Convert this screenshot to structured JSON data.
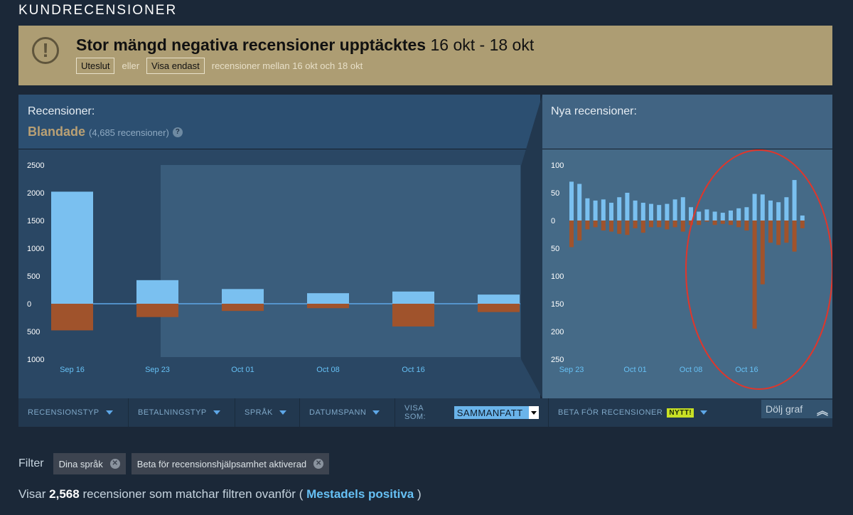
{
  "section_title": "KUNDRECENSIONER",
  "banner": {
    "title": "Stor mängd negativa recensioner upptäcktes",
    "range": "16 okt - 18 okt",
    "exclude_label": "Uteslut",
    "or_text": "eller",
    "show_only_label": "Visa endast",
    "suffix": "recensioner mellan 16 okt och 18 okt"
  },
  "overall": {
    "label": "Recensioner:",
    "summary": "Blandade",
    "count": "(4,685 recensioner)",
    "help": "?"
  },
  "recent": {
    "label": "Nya recensioner:"
  },
  "chart_data": [
    {
      "type": "bar",
      "categories": [
        "Sep 16",
        "Sep 23",
        "Oct 01",
        "Oct 08",
        "Oct 16",
        ""
      ],
      "x_tick_labels": [
        "Sep 16",
        "Sep 23",
        "Oct 01",
        "Oct 08",
        "Oct 16"
      ],
      "series": [
        {
          "name": "",
          "color": "#7ac0f0",
          "values": [
            2020,
            425,
            265,
            190,
            220,
            165
          ]
        },
        {
          "name": "",
          "color": "#a0532c",
          "values": [
            -480,
            -240,
            -130,
            -80,
            -410,
            -150
          ]
        }
      ],
      "ylim": [
        -1000,
        2500
      ],
      "y_ticks": [
        2500,
        2000,
        1500,
        1000,
        500,
        0,
        -500,
        -1000
      ],
      "y_tick_labels": [
        "2500",
        "2000",
        "1500",
        "1000",
        "500",
        "0",
        "500",
        "1000"
      ],
      "title": "",
      "xlabel": "",
      "ylabel": ""
    },
    {
      "type": "bar",
      "x_tick_labels": [
        "Sep 23",
        "Oct 01",
        "Oct 08",
        "Oct 16"
      ],
      "x_tick_index": [
        0,
        8,
        15,
        22
      ],
      "series": [
        {
          "name": "",
          "color": "#7ac0f0",
          "values": [
            70,
            66,
            40,
            36,
            38,
            32,
            42,
            50,
            36,
            32,
            30,
            28,
            30,
            38,
            42,
            24,
            16,
            20,
            16,
            14,
            18,
            22,
            24,
            48,
            47,
            36,
            33,
            42,
            73,
            9
          ]
        },
        {
          "name": "",
          "color": "#a0532c",
          "values": [
            -48,
            -36,
            -16,
            -12,
            -18,
            -20,
            -24,
            -26,
            -14,
            -22,
            -12,
            -12,
            -16,
            -12,
            -20,
            -8,
            -8,
            -2,
            -8,
            -6,
            -8,
            -12,
            -18,
            -195,
            -115,
            -40,
            -44,
            -40,
            -56,
            -14
          ]
        }
      ],
      "ylim": [
        -250,
        100
      ],
      "y_ticks": [
        100,
        50,
        0,
        -50,
        -100,
        -150,
        -200,
        -250
      ],
      "y_tick_labels": [
        "100",
        "50",
        "0",
        "50",
        "100",
        "150",
        "200",
        "250"
      ],
      "highlight": "red ellipse around Oct 08 – Oct 16 spike",
      "title": "",
      "xlabel": "",
      "ylabel": ""
    }
  ],
  "filterbar": {
    "review_type": "RECENSIONSTYP",
    "payment_type": "BETALNINGSTYP",
    "language": "SPRÅK",
    "date_range": "DATUMSPANN",
    "display_as": "VISA SOM:",
    "display_value": "SAMMANFATT",
    "beta": "BETA FÖR RECENSIONER",
    "new_badge": "NYTT!",
    "hide_graph": "Dölj graf"
  },
  "filters": {
    "label": "Filter",
    "chips": [
      "Dina språk",
      "Beta för recensionshjälpsamhet aktiverad"
    ]
  },
  "showing": {
    "prefix": "Visar",
    "count": "2,568",
    "middle": "recensioner som matchar filtren ovanför (",
    "rating": "Mestadels positiva",
    "suffix": ")"
  }
}
